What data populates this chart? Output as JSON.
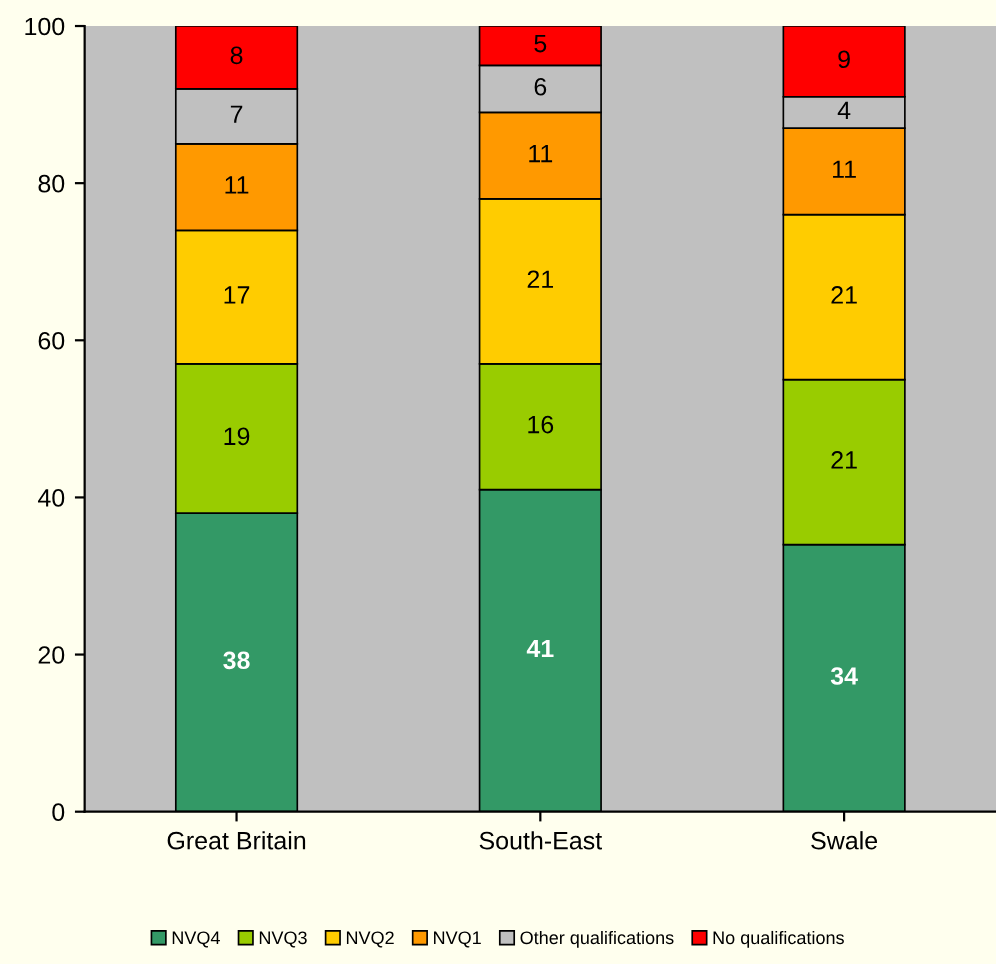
{
  "chart_data": {
    "type": "bar",
    "stacked": true,
    "categories": [
      "Great Britain",
      "South-East",
      "Swale"
    ],
    "series": [
      {
        "name": "NVQ4",
        "color": "#339966",
        "values": [
          38,
          41,
          34
        ]
      },
      {
        "name": "NVQ3",
        "color": "#99cc00",
        "values": [
          19,
          16,
          21
        ]
      },
      {
        "name": "NVQ2",
        "color": "#ffcc00",
        "values": [
          17,
          21,
          21
        ]
      },
      {
        "name": "NVQ1",
        "color": "#ff9900",
        "values": [
          11,
          11,
          11
        ]
      },
      {
        "name": "Other qualifications",
        "color": "#c0c0c0",
        "values": [
          7,
          6,
          4
        ]
      },
      {
        "name": "No qualifications",
        "color": "#ff0000",
        "values": [
          8,
          5,
          9
        ]
      }
    ],
    "ylim": [
      0,
      100
    ],
    "yticks": [
      0,
      20,
      40,
      60,
      80,
      100
    ],
    "grid": false,
    "legend": "bottom",
    "data_labels": true
  }
}
